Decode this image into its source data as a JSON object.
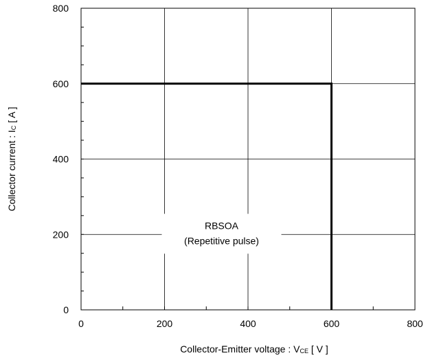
{
  "chart_data": {
    "type": "line",
    "title": "",
    "xlabel": {
      "prefix": "Collector-Emitter voltage : V",
      "subscript": "CE",
      "suffix": " [ V ]"
    },
    "ylabel": {
      "prefix": "Collector current : I",
      "subscript": "C",
      "suffix": " [ A ]"
    },
    "xlim": [
      0,
      800
    ],
    "ylim": [
      0,
      800
    ],
    "xticks": [
      0,
      200,
      400,
      600,
      800
    ],
    "yticks": [
      0,
      200,
      400,
      600,
      800
    ],
    "xtick_labels": [
      "0",
      "200",
      "400",
      "600",
      "800"
    ],
    "ytick_labels": [
      "0",
      "200",
      "400",
      "600",
      "800"
    ],
    "minor_tick_step": 100,
    "grid": true,
    "series": [
      {
        "x": [
          0,
          600,
          600
        ],
        "y": [
          600,
          600,
          0
        ],
        "color": "#000000"
      }
    ],
    "annotation": {
      "lines": [
        "RBSOA",
        "(Repetitive pulse)"
      ],
      "x": 200,
      "y": 200
    }
  }
}
